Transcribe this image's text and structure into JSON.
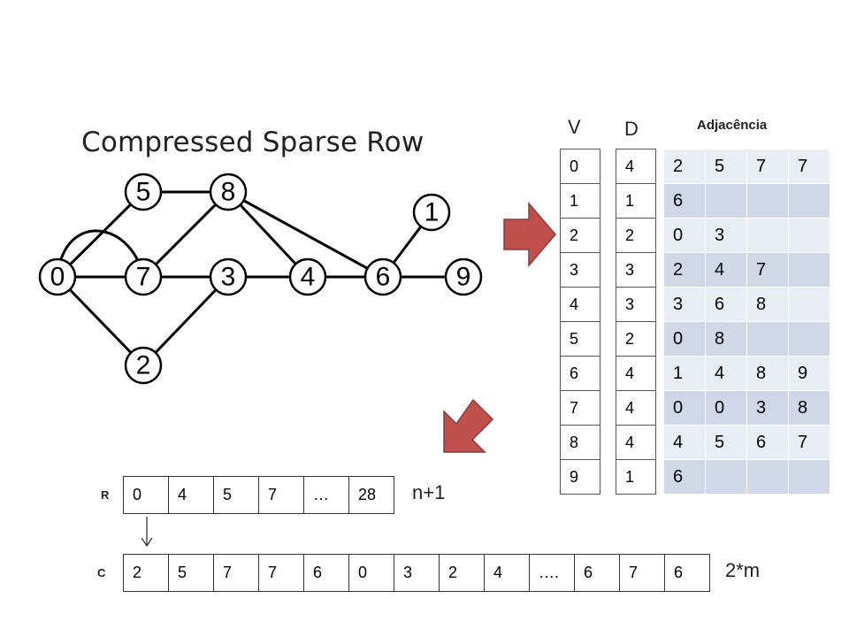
{
  "title": "Compressed Sparse Row",
  "graph": {
    "nodes": [
      "0",
      "1",
      "2",
      "3",
      "4",
      "5",
      "6",
      "7",
      "8",
      "9"
    ]
  },
  "vertex_header": "V",
  "degree_header": "D",
  "adjacency_header": "Adjacência",
  "vertices": [
    "0",
    "1",
    "2",
    "3",
    "4",
    "5",
    "6",
    "7",
    "8",
    "9"
  ],
  "degrees": [
    "4",
    "1",
    "2",
    "3",
    "3",
    "2",
    "4",
    "4",
    "4",
    "1"
  ],
  "adjacency": [
    [
      "2",
      "5",
      "7",
      "7"
    ],
    [
      "6",
      "",
      "",
      ""
    ],
    [
      "0",
      "3",
      "",
      ""
    ],
    [
      "2",
      "4",
      "7",
      ""
    ],
    [
      "3",
      "6",
      "8",
      ""
    ],
    [
      "0",
      "8",
      "",
      ""
    ],
    [
      "1",
      "4",
      "8",
      "9"
    ],
    [
      "0",
      "0",
      "3",
      "8"
    ],
    [
      "4",
      "5",
      "6",
      "7"
    ],
    [
      "6",
      "",
      "",
      ""
    ]
  ],
  "r_label": "R",
  "r_values": [
    "0",
    "4",
    "5",
    "7",
    "…",
    "28"
  ],
  "r_note": "n+1",
  "c_label": "C",
  "c_values": [
    "2",
    "5",
    "7",
    "7",
    "6",
    "0",
    "3",
    "2",
    "4",
    "….",
    "6",
    "7",
    "6"
  ],
  "c_note": "2*m",
  "colors": {
    "arrow_fill": "#c0504d",
    "arrow_stroke": "#8c3836",
    "adj_light": "#e9edf4",
    "adj_dark": "#d0d8e8"
  }
}
